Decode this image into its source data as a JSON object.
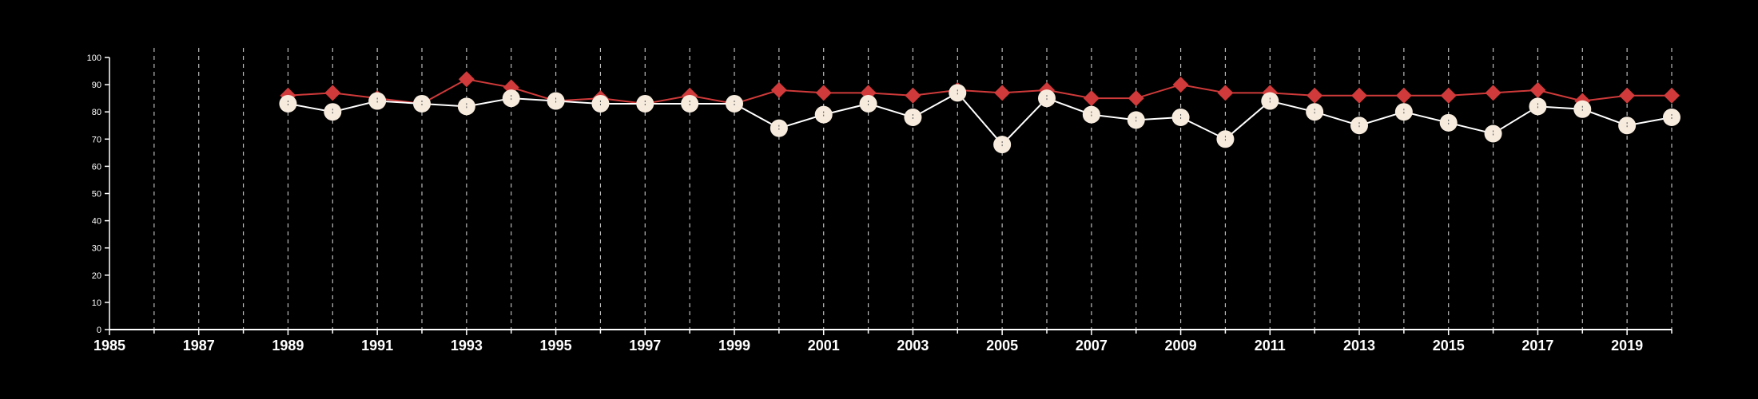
{
  "chart_data": {
    "type": "line",
    "title": "",
    "xlabel": "",
    "ylabel": "",
    "xlim": [
      1985,
      2020
    ],
    "ylim": [
      0,
      100
    ],
    "yticks": [
      0,
      10,
      20,
      30,
      40,
      50,
      60,
      70,
      80,
      90,
      100
    ],
    "xticks": [
      1985,
      1987,
      1989,
      1991,
      1993,
      1995,
      1997,
      1999,
      2001,
      2003,
      2005,
      2007,
      2009,
      2011,
      2013,
      2015,
      2017,
      2019
    ],
    "vertical_grid": "dashed, every year",
    "background": "#000000",
    "axis_color": "#ffffff",
    "x": [
      1989,
      1990,
      1991,
      1992,
      1993,
      1994,
      1995,
      1996,
      1997,
      1998,
      1999,
      2000,
      2001,
      2002,
      2003,
      2004,
      2005,
      2006,
      2007,
      2008,
      2009,
      2010,
      2011,
      2012,
      2013,
      2014,
      2015,
      2016,
      2017,
      2018,
      2019,
      2020
    ],
    "series": [
      {
        "marker": "diamond",
        "color": "#d03a3a",
        "values": [
          86,
          87,
          85,
          83,
          92,
          89,
          84,
          85,
          83,
          86,
          83,
          88,
          87,
          87,
          86,
          88,
          87,
          88,
          85,
          85,
          90,
          87,
          87,
          86,
          86,
          86,
          86,
          87,
          88,
          84,
          86,
          86
        ]
      },
      {
        "marker": "circle",
        "color": "#f7ebdd",
        "line_color": "#ffffff",
        "values": [
          83,
          80,
          84,
          83,
          82,
          85,
          84,
          83,
          83,
          83,
          83,
          74,
          79,
          83,
          78,
          87,
          68,
          85,
          79,
          77,
          78,
          70,
          84,
          80,
          75,
          80,
          76,
          72,
          82,
          81,
          75,
          78
        ]
      }
    ]
  }
}
